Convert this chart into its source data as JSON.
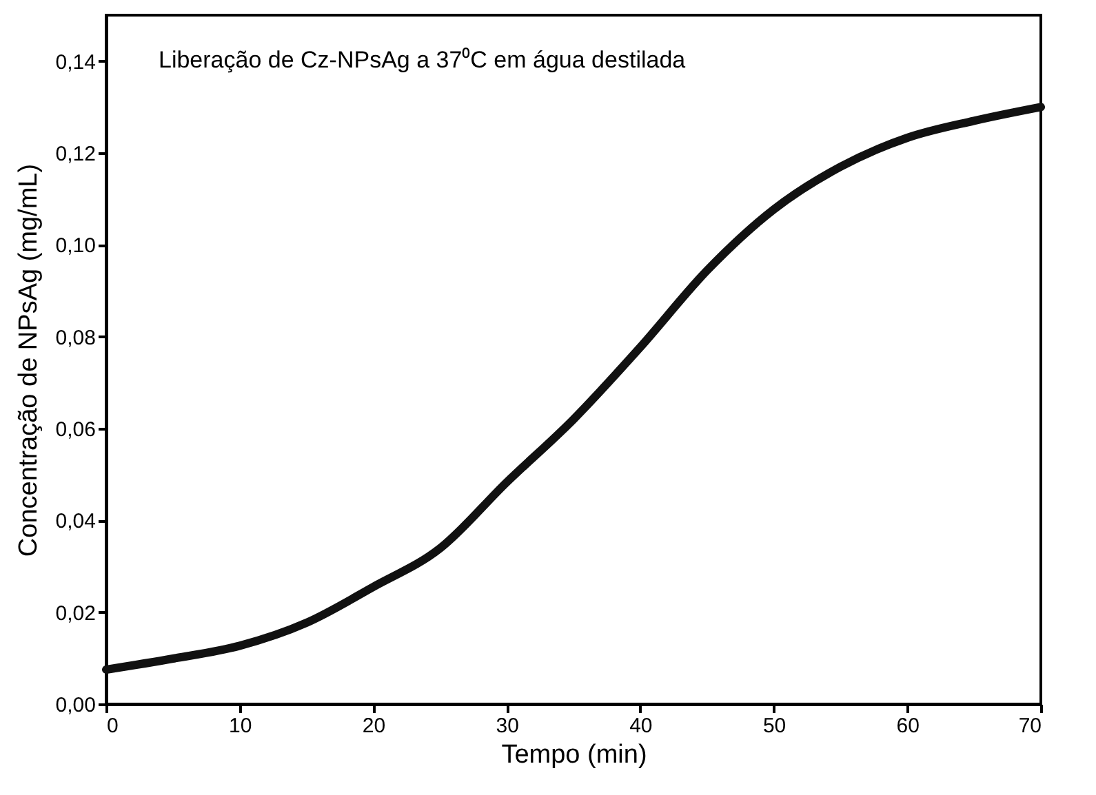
{
  "chart_data": {
    "type": "line",
    "xlabel": "Tempo (min)",
    "ylabel": "Concentração de NPsAg (mg/mL)",
    "annotations": [
      "Liberação de Cz-NPsAg a 37⁰C em água destilada"
    ],
    "x": [
      0,
      5,
      10,
      15,
      20,
      25,
      30,
      35,
      40,
      45,
      50,
      55,
      60,
      65,
      70
    ],
    "series": [
      {
        "color": "#111111",
        "values": [
          0.0075,
          0.0099,
          0.0127,
          0.0177,
          0.0255,
          0.0339,
          0.0483,
          0.062,
          0.0777,
          0.0944,
          0.1077,
          0.117,
          0.1233,
          0.127,
          0.13
        ]
      }
    ],
    "xlim": [
      0,
      70
    ],
    "xticks": [
      0,
      10,
      20,
      30,
      40,
      50,
      60,
      70
    ],
    "ylim": [
      0,
      0.15
    ],
    "yticks": [
      {
        "value": 0,
        "label": "0,00"
      },
      {
        "value": 0.02,
        "label": "0,02"
      },
      {
        "value": 0.04,
        "label": "0,04"
      },
      {
        "value": 0.06,
        "label": "0,06"
      },
      {
        "value": 0.08,
        "label": "0,08"
      },
      {
        "value": 0.1,
        "label": "0,10"
      },
      {
        "value": 0.12,
        "label": "0,12"
      },
      {
        "value": 0.14,
        "label": "0,14"
      }
    ],
    "grid": false,
    "legend": false,
    "line_style": "solid"
  }
}
